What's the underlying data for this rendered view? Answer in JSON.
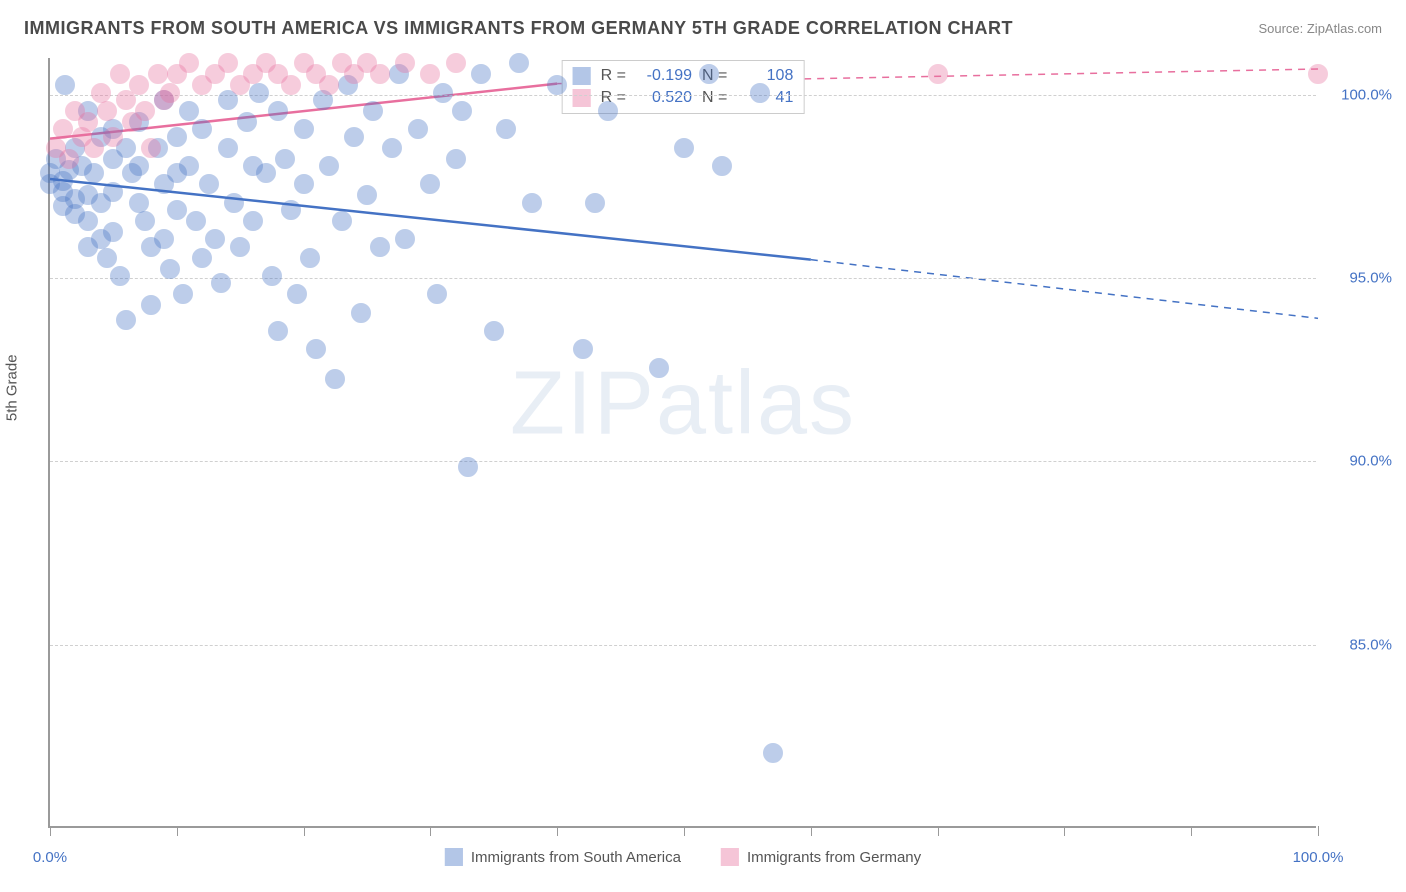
{
  "title": "IMMIGRANTS FROM SOUTH AMERICA VS IMMIGRANTS FROM GERMANY 5TH GRADE CORRELATION CHART",
  "source": "Source: ZipAtlas.com",
  "ylabel": "5th Grade",
  "watermark": "ZIPatlas",
  "chart": {
    "type": "scatter",
    "xlim": [
      0,
      100
    ],
    "ylim": [
      80,
      101
    ],
    "x_ticks": [
      0,
      10,
      20,
      30,
      40,
      50,
      60,
      70,
      80,
      90,
      100
    ],
    "x_tick_labels": {
      "0": "0.0%",
      "100": "100.0%"
    },
    "y_ticks": [
      85,
      90,
      95,
      100
    ],
    "y_tick_labels": {
      "85": "85.0%",
      "90": "90.0%",
      "95": "95.0%",
      "100": "100.0%"
    },
    "background_color": "#ffffff",
    "grid_color": "#d0d0d0",
    "axis_color": "#9a9a9a",
    "marker_radius": 10,
    "marker_opacity": 0.35,
    "series": [
      {
        "name": "Immigrants from South America",
        "color_fill": "#4472c4",
        "color_stroke": "#4472c4",
        "R": "-0.199",
        "N": "108",
        "trend": {
          "x1": 0,
          "y1": 97.7,
          "x2_solid": 60,
          "y2_solid": 95.5,
          "x2_dash": 100,
          "y2_dash": 93.9,
          "width": 2.5
        },
        "points": [
          [
            0,
            97.8
          ],
          [
            0,
            97.5
          ],
          [
            0.5,
            98.2
          ],
          [
            1,
            97.6
          ],
          [
            1,
            97.3
          ],
          [
            1,
            96.9
          ],
          [
            1.2,
            100.2
          ],
          [
            1.5,
            97.9
          ],
          [
            2,
            98.5
          ],
          [
            2,
            97.1
          ],
          [
            2,
            96.7
          ],
          [
            2.5,
            98.0
          ],
          [
            3,
            99.5
          ],
          [
            3,
            97.2
          ],
          [
            3,
            96.5
          ],
          [
            3,
            95.8
          ],
          [
            3.5,
            97.8
          ],
          [
            4,
            98.8
          ],
          [
            4,
            97.0
          ],
          [
            4,
            96.0
          ],
          [
            4.5,
            95.5
          ],
          [
            5,
            99.0
          ],
          [
            5,
            98.2
          ],
          [
            5,
            97.3
          ],
          [
            5,
            96.2
          ],
          [
            5.5,
            95.0
          ],
          [
            6,
            93.8
          ],
          [
            6,
            98.5
          ],
          [
            6.5,
            97.8
          ],
          [
            7,
            99.2
          ],
          [
            7,
            98.0
          ],
          [
            7,
            97.0
          ],
          [
            7.5,
            96.5
          ],
          [
            8,
            95.8
          ],
          [
            8,
            94.2
          ],
          [
            8.5,
            98.5
          ],
          [
            9,
            99.8
          ],
          [
            9,
            97.5
          ],
          [
            9,
            96.0
          ],
          [
            9.5,
            95.2
          ],
          [
            10,
            98.8
          ],
          [
            10,
            97.8
          ],
          [
            10,
            96.8
          ],
          [
            10.5,
            94.5
          ],
          [
            11,
            99.5
          ],
          [
            11,
            98.0
          ],
          [
            11.5,
            96.5
          ],
          [
            12,
            95.5
          ],
          [
            12,
            99.0
          ],
          [
            12.5,
            97.5
          ],
          [
            13,
            96.0
          ],
          [
            13.5,
            94.8
          ],
          [
            14,
            99.8
          ],
          [
            14,
            98.5
          ],
          [
            14.5,
            97.0
          ],
          [
            15,
            95.8
          ],
          [
            15.5,
            99.2
          ],
          [
            16,
            98.0
          ],
          [
            16,
            96.5
          ],
          [
            16.5,
            100.0
          ],
          [
            17,
            97.8
          ],
          [
            17.5,
            95.0
          ],
          [
            18,
            93.5
          ],
          [
            18,
            99.5
          ],
          [
            18.5,
            98.2
          ],
          [
            19,
            96.8
          ],
          [
            19.5,
            94.5
          ],
          [
            20,
            99.0
          ],
          [
            20,
            97.5
          ],
          [
            20.5,
            95.5
          ],
          [
            21,
            93.0
          ],
          [
            21.5,
            99.8
          ],
          [
            22,
            98.0
          ],
          [
            22.5,
            92.2
          ],
          [
            23,
            96.5
          ],
          [
            23.5,
            100.2
          ],
          [
            24,
            98.8
          ],
          [
            24.5,
            94.0
          ],
          [
            25,
            97.2
          ],
          [
            25.5,
            99.5
          ],
          [
            26,
            95.8
          ],
          [
            27,
            98.5
          ],
          [
            27.5,
            100.5
          ],
          [
            28,
            96.0
          ],
          [
            29,
            99.0
          ],
          [
            30,
            97.5
          ],
          [
            30.5,
            94.5
          ],
          [
            31,
            100.0
          ],
          [
            32,
            98.2
          ],
          [
            32.5,
            99.5
          ],
          [
            33,
            89.8
          ],
          [
            34,
            100.5
          ],
          [
            35,
            93.5
          ],
          [
            36,
            99.0
          ],
          [
            37,
            100.8
          ],
          [
            38,
            97.0
          ],
          [
            40,
            100.2
          ],
          [
            42,
            93.0
          ],
          [
            43,
            97.0
          ],
          [
            44,
            99.5
          ],
          [
            48,
            92.5
          ],
          [
            50,
            98.5
          ],
          [
            52,
            100.5
          ],
          [
            53,
            98.0
          ],
          [
            56,
            100.0
          ],
          [
            57,
            82.0
          ]
        ]
      },
      {
        "name": "Immigrants from Germany",
        "color_fill": "#e86f9e",
        "color_stroke": "#e86f9e",
        "R": "0.520",
        "N": "41",
        "trend": {
          "x1": 0,
          "y1": 98.8,
          "x2_solid": 40,
          "y2_solid": 100.3,
          "x2_dash": 100,
          "y2_dash": 100.7,
          "width": 2.5
        },
        "points": [
          [
            0.5,
            98.5
          ],
          [
            1,
            99.0
          ],
          [
            1.5,
            98.2
          ],
          [
            2,
            99.5
          ],
          [
            2.5,
            98.8
          ],
          [
            3,
            99.2
          ],
          [
            3.5,
            98.5
          ],
          [
            4,
            100.0
          ],
          [
            4.5,
            99.5
          ],
          [
            5,
            98.8
          ],
          [
            5.5,
            100.5
          ],
          [
            6,
            99.8
          ],
          [
            6.5,
            99.2
          ],
          [
            7,
            100.2
          ],
          [
            7.5,
            99.5
          ],
          [
            8,
            98.5
          ],
          [
            8.5,
            100.5
          ],
          [
            9,
            99.8
          ],
          [
            9.5,
            100.0
          ],
          [
            10,
            100.5
          ],
          [
            11,
            100.8
          ],
          [
            12,
            100.2
          ],
          [
            13,
            100.5
          ],
          [
            14,
            100.8
          ],
          [
            15,
            100.2
          ],
          [
            16,
            100.5
          ],
          [
            17,
            100.8
          ],
          [
            18,
            100.5
          ],
          [
            19,
            100.2
          ],
          [
            20,
            100.8
          ],
          [
            21,
            100.5
          ],
          [
            22,
            100.2
          ],
          [
            23,
            100.8
          ],
          [
            24,
            100.5
          ],
          [
            25,
            100.8
          ],
          [
            26,
            100.5
          ],
          [
            28,
            100.8
          ],
          [
            30,
            100.5
          ],
          [
            32,
            100.8
          ],
          [
            70,
            100.5
          ],
          [
            100,
            100.5
          ]
        ]
      }
    ]
  },
  "legend": {
    "series1_label": "Immigrants from South America",
    "series2_label": "Immigrants from Germany"
  },
  "stats": {
    "r_label": "R =",
    "n_label": "N ="
  }
}
